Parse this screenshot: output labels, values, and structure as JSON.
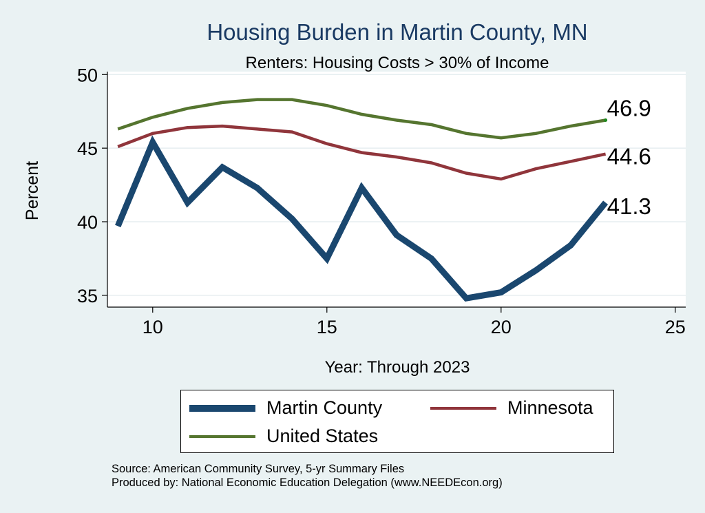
{
  "chart_data": {
    "type": "line",
    "title": "Housing Burden in Martin County, MN",
    "subtitle": "Renters: Housing Costs > 30% of Income",
    "xlabel": "Year: Through 2023",
    "ylabel": "Percent",
    "xlim": [
      8.7,
      25.3
    ],
    "ylim": [
      34.2,
      50.2
    ],
    "x_ticks": [
      10,
      15,
      20,
      25
    ],
    "y_ticks": [
      35,
      40,
      45,
      50
    ],
    "grid": "horizontal",
    "legend_position": "bottom",
    "series": [
      {
        "name": "Martin County",
        "color": "#1a476f",
        "x": [
          9,
          10,
          11,
          12,
          13,
          14,
          15,
          16,
          17,
          18,
          19,
          20,
          21,
          22,
          23
        ],
        "y": [
          39.7,
          45.4,
          41.3,
          43.7,
          42.3,
          40.2,
          37.5,
          42.3,
          39.1,
          37.5,
          34.8,
          35.2,
          36.7,
          38.4,
          41.3
        ],
        "end_label": "41.3"
      },
      {
        "name": "Minnesota",
        "color": "#90353b",
        "x": [
          9,
          10,
          11,
          12,
          13,
          14,
          15,
          16,
          17,
          18,
          19,
          20,
          21,
          22,
          23
        ],
        "y": [
          45.1,
          46.0,
          46.4,
          46.5,
          46.3,
          46.1,
          45.3,
          44.7,
          44.4,
          44.0,
          43.3,
          42.9,
          43.6,
          44.1,
          44.6
        ],
        "end_label": "44.6"
      },
      {
        "name": "United States",
        "color": "#55752f",
        "x": [
          9,
          10,
          11,
          12,
          13,
          14,
          15,
          16,
          17,
          18,
          19,
          20,
          21,
          22,
          23
        ],
        "y": [
          46.3,
          47.1,
          47.7,
          48.1,
          48.3,
          48.3,
          47.9,
          47.3,
          46.9,
          46.6,
          46.0,
          45.7,
          46.0,
          46.5,
          46.9
        ],
        "end_label": "46.9"
      }
    ]
  },
  "legend": {
    "items": [
      {
        "label": "Martin County",
        "color": "#1a476f"
      },
      {
        "label": "Minnesota",
        "color": "#90353b"
      },
      {
        "label": "United States",
        "color": "#55752f"
      }
    ]
  },
  "source": {
    "line1": "Source: American Community Survey, 5-yr Summary Files",
    "line2": "Produced by: National Economic Education Delegation (www.NEEDEcon.org)"
  }
}
